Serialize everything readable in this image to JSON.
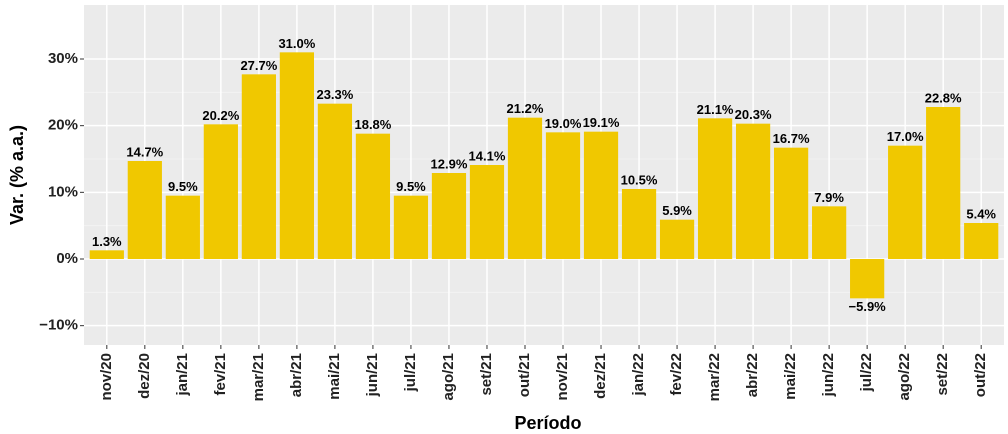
{
  "chart_data": {
    "type": "bar",
    "x_label": "Período",
    "y_label": "Var. (% a.a.)",
    "categories": [
      "nov/20",
      "dez/20",
      "jan/21",
      "fev/21",
      "mar/21",
      "abr/21",
      "mai/21",
      "jun/21",
      "jul/21",
      "ago/21",
      "set/21",
      "out/21",
      "nov/21",
      "dez/21",
      "jan/22",
      "fev/22",
      "mar/22",
      "abr/22",
      "mai/22",
      "jun/22",
      "jul/22",
      "ago/22",
      "set/22",
      "out/22"
    ],
    "values": [
      1.3,
      14.7,
      9.5,
      20.2,
      27.7,
      31.0,
      23.3,
      18.8,
      9.5,
      12.9,
      14.1,
      21.2,
      19.0,
      19.1,
      10.5,
      5.9,
      21.1,
      20.3,
      16.7,
      7.9,
      -5.9,
      17.0,
      22.8,
      5.4
    ],
    "value_labels": [
      "1.3%",
      "14.7%",
      "9.5%",
      "20.2%",
      "27.7%",
      "31.0%",
      "23.3%",
      "18.8%",
      "9.5%",
      "12.9%",
      "14.1%",
      "21.2%",
      "19.0%",
      "19.1%",
      "10.5%",
      "5.9%",
      "21.1%",
      "20.3%",
      "16.7%",
      "7.9%",
      "−5.9%",
      "17.0%",
      "22.8%",
      "5.4%"
    ],
    "color": "#f0c800",
    "ylim": [
      -12.9,
      38.1
    ],
    "yticks": [
      {
        "value": -10,
        "label": "−10%"
      },
      {
        "value": 0,
        "label": "0%"
      },
      {
        "value": 10,
        "label": "10%"
      },
      {
        "value": 20,
        "label": "20%"
      },
      {
        "value": 30,
        "label": "30%"
      }
    ],
    "grid": true
  }
}
